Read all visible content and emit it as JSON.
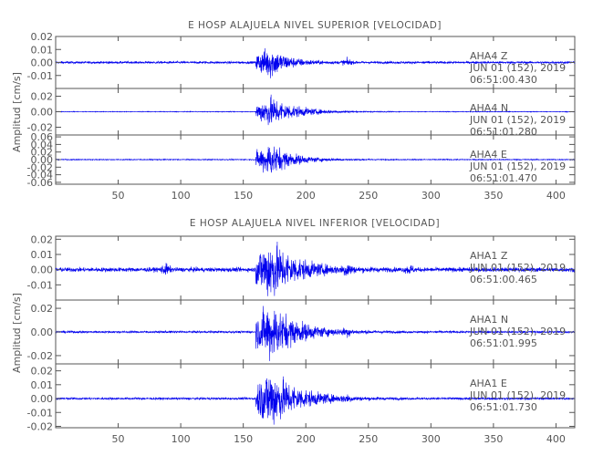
{
  "chart_data": [
    {
      "type": "line",
      "title": "E HOSP ALAJUELA NIVEL SUPERIOR [VELOCIDAD]",
      "ylabel": "Amplitud [cm/s]",
      "xlabel": "",
      "xlim": [
        0,
        415
      ],
      "x_ticks": [
        "50",
        "100",
        "150",
        "200",
        "250",
        "300",
        "350",
        "400"
      ],
      "grid": false,
      "series_color": "#0000ee",
      "traces": [
        {
          "station": "AHA4",
          "component": "Z",
          "date": "JUN 01 (152), 2019",
          "time": "06:51:00.430",
          "ylim": [
            -0.02,
            0.02
          ],
          "y_ticks": [
            "0.02",
            "0.01",
            "0.00",
            "-0.01"
          ],
          "envelope": {
            "noise": 0.0008,
            "onset_x": 160,
            "peak_x": 172,
            "peak": 0.011,
            "decay_end_x": 215,
            "minor_bursts": [
              {
                "x": 233,
                "amp": 0.002
              }
            ]
          }
        },
        {
          "station": "AHA4",
          "component": "N",
          "date": "JUN 01 (152), 2019",
          "time": "06:51:01.280",
          "ylim": [
            -0.03,
            0.03
          ],
          "y_ticks": [
            "0.02",
            "0.00",
            "-0.02"
          ],
          "envelope": {
            "noise": 0.0004,
            "onset_x": 160,
            "peak_x": 172,
            "peak": 0.018,
            "decay_end_x": 235,
            "minor_bursts": []
          }
        },
        {
          "station": "AHA4",
          "component": "E",
          "date": "JUN 01 (152), 2019",
          "time": "06:51:01.470",
          "ylim": [
            -0.065,
            0.065
          ],
          "y_ticks": [
            "0.06",
            "0.04",
            "0.02",
            "0.00",
            "-0.02",
            "-0.04",
            "-0.06"
          ],
          "envelope": {
            "noise": 0.0012,
            "onset_x": 160,
            "peak_x": 172,
            "peak": 0.04,
            "decay_end_x": 225,
            "minor_bursts": []
          }
        }
      ]
    },
    {
      "type": "line",
      "title": "E HOSP ALAJUELA NIVEL INFERIOR [VELOCIDAD]",
      "ylabel": "Amplitud [cm/s]",
      "xlabel": "",
      "xlim": [
        0,
        415
      ],
      "x_ticks": [
        "50",
        "100",
        "150",
        "200",
        "250",
        "300",
        "350",
        "400"
      ],
      "grid": false,
      "series_color": "#0000ee",
      "traces": [
        {
          "station": "AHA1",
          "component": "Z",
          "date": "JUN 01 (152), 2019",
          "time": "06:51:00.465",
          "ylim": [
            -0.02,
            0.022
          ],
          "y_ticks": [
            "0.02",
            "0.01",
            "0.00",
            "-0.01"
          ],
          "envelope": {
            "noise": 0.0013,
            "onset_x": 160,
            "peak_x": 172,
            "peak": 0.018,
            "decay_end_x": 235,
            "minor_bursts": [
              {
                "x": 88,
                "amp": 0.0025
              },
              {
                "x": 233,
                "amp": 0.003
              },
              {
                "x": 283,
                "amp": 0.002
              }
            ]
          }
        },
        {
          "station": "AHA1",
          "component": "N",
          "date": "JUN 01 (152), 2019",
          "time": "06:51:01.995",
          "ylim": [
            -0.027,
            0.027
          ],
          "y_ticks": [
            "0.02",
            "0.00",
            "-0.02"
          ],
          "envelope": {
            "noise": 0.0008,
            "onset_x": 160,
            "peak_x": 172,
            "peak": 0.022,
            "decay_end_x": 240,
            "minor_bursts": [
              {
                "x": 233,
                "amp": 0.002
              }
            ]
          }
        },
        {
          "station": "AHA1",
          "component": "E",
          "date": "JUN 01 (152), 2019",
          "time": "06:51:01.730",
          "ylim": [
            -0.021,
            0.025
          ],
          "y_ticks": [
            "0.02",
            "0.01",
            "0.00",
            "-0.01",
            "-0.02"
          ],
          "envelope": {
            "noise": 0.0007,
            "onset_x": 160,
            "peak_x": 172,
            "peak": 0.02,
            "decay_end_x": 240,
            "minor_bursts": [
              {
                "x": 233,
                "amp": 0.0015
              }
            ]
          }
        }
      ]
    }
  ]
}
